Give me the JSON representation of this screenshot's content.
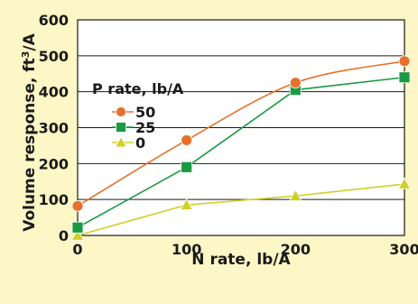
{
  "chart_data": {
    "type": "line",
    "title": "",
    "xlabel": "N rate, lb/A",
    "ylabel_main": "Volume response, ft",
    "ylabel_sup": "3",
    "ylabel_tail": "/A",
    "x": [
      0,
      100,
      200,
      300
    ],
    "xticks": [
      "0",
      "100",
      "200",
      "300"
    ],
    "yticks": [
      "0",
      "100",
      "200",
      "300",
      "400",
      "500",
      "600"
    ],
    "xlim": [
      0,
      300
    ],
    "ylim": [
      0,
      600
    ],
    "grid": "horizontal",
    "legend": {
      "title": "P rate, lb/A",
      "placement": "upper-left inside plot"
    },
    "series": [
      {
        "name": "50",
        "marker": "circle",
        "color": "#e8702a",
        "values": [
          82,
          265,
          425,
          485
        ]
      },
      {
        "name": "25",
        "marker": "square",
        "color": "#1a9a43",
        "values": [
          22,
          190,
          405,
          440
        ]
      },
      {
        "name": "0",
        "marker": "triangle",
        "color": "#cfd12a",
        "values": [
          0,
          85,
          110,
          143
        ]
      }
    ]
  }
}
